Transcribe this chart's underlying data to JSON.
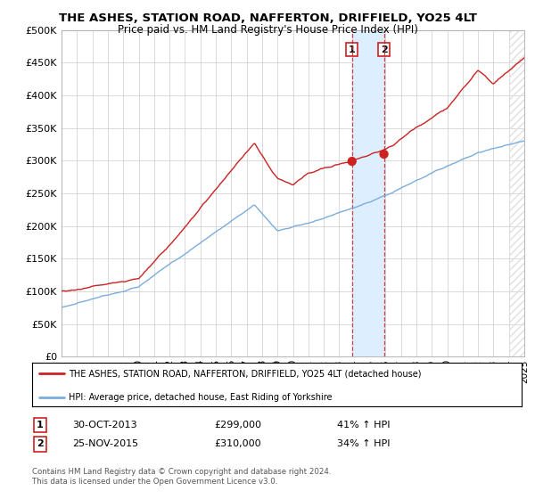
{
  "title": "THE ASHES, STATION ROAD, NAFFERTON, DRIFFIELD, YO25 4LT",
  "subtitle": "Price paid vs. HM Land Registry's House Price Index (HPI)",
  "ylabel_ticks": [
    "£0",
    "£50K",
    "£100K",
    "£150K",
    "£200K",
    "£250K",
    "£300K",
    "£350K",
    "£400K",
    "£450K",
    "£500K"
  ],
  "ytick_values": [
    0,
    50000,
    100000,
    150000,
    200000,
    250000,
    300000,
    350000,
    400000,
    450000,
    500000
  ],
  "xlim_start": 1995,
  "xlim_end": 2025,
  "ylim_min": 0,
  "ylim_max": 500000,
  "hpi_color": "#7aaddc",
  "property_color": "#cc2222",
  "purchase1_date": 2013.83,
  "purchase1_value": 299000,
  "purchase2_date": 2015.9,
  "purchase2_value": 310000,
  "legend_property": "THE ASHES, STATION ROAD, NAFFERTON, DRIFFIELD, YO25 4LT (detached house)",
  "legend_hpi": "HPI: Average price, detached house, East Riding of Yorkshire",
  "table_row1": [
    "1",
    "30-OCT-2013",
    "£299,000",
    "41% ↑ HPI"
  ],
  "table_row2": [
    "2",
    "25-NOV-2015",
    "£310,000",
    "34% ↑ HPI"
  ],
  "footer": "Contains HM Land Registry data © Crown copyright and database right 2024.\nThis data is licensed under the Open Government Licence v3.0.",
  "background_color": "#ffffff",
  "grid_color": "#cccccc",
  "shaded_region_color": "#ddeeff",
  "hatch_color": "#e0e0e0"
}
